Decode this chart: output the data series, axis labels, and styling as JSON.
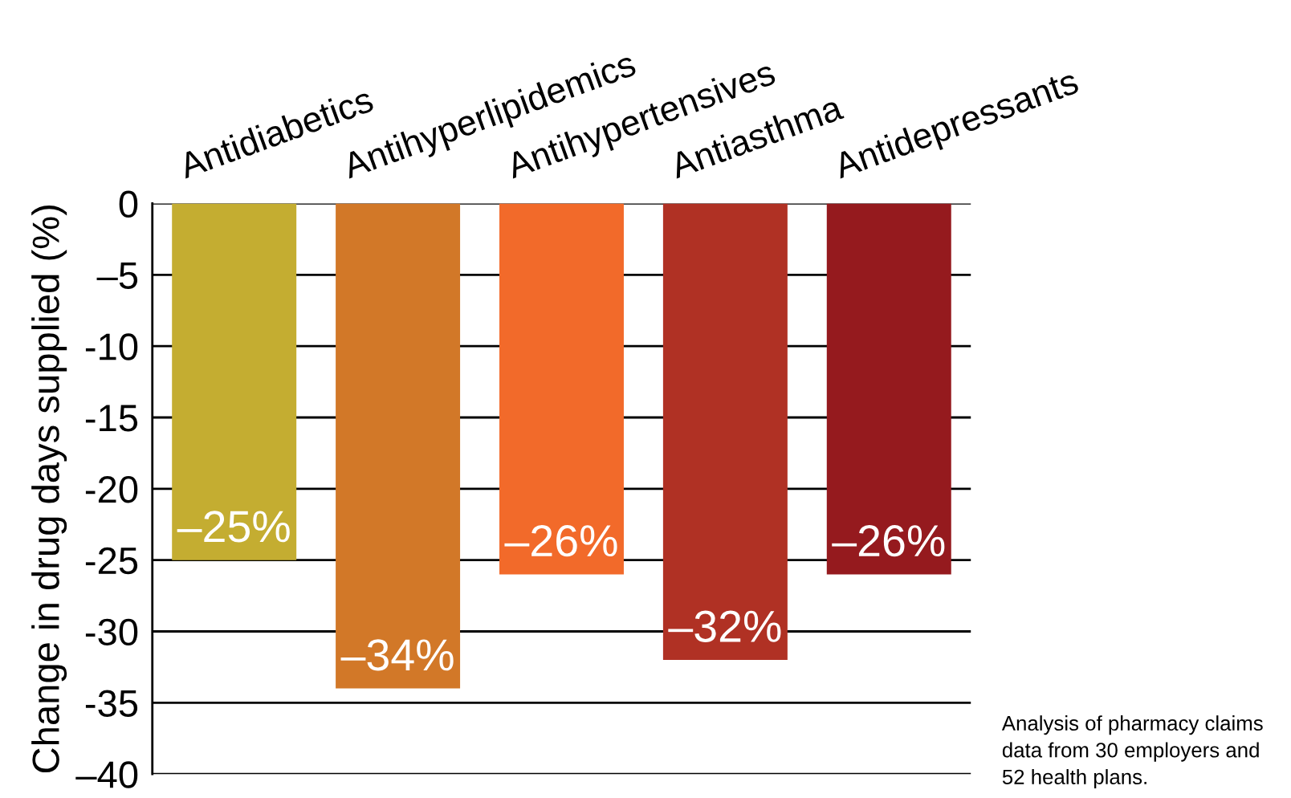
{
  "chart_data": {
    "type": "bar",
    "ylabel": "Change in drug days supplied (%)",
    "categories": [
      "Antidiabetics",
      "Antihyperlipidemics",
      "Antihypertensives",
      "Antiasthma",
      "Antidepressants"
    ],
    "values": [
      -25,
      -34,
      -26,
      -32,
      -26
    ],
    "value_labels": [
      "–25%",
      "–34%",
      "–26%",
      "–32%",
      "–26%"
    ],
    "colors": [
      "#c4ad31",
      "#d27828",
      "#f26a2a",
      "#b03124",
      "#951a1e"
    ],
    "ylim": [
      -40,
      0
    ],
    "yticks": [
      0,
      {
        "value": -5,
        "label": "–5"
      },
      {
        "value": -10,
        "label": "-10"
      },
      {
        "value": -15,
        "label": "-15"
      },
      {
        "value": -20,
        "label": "-20"
      },
      {
        "value": -25,
        "label": "-25"
      },
      {
        "value": -30,
        "label": "-30"
      },
      {
        "value": -35,
        "label": "-35"
      },
      {
        "value": -40,
        "label": "–40"
      }
    ],
    "grid": "y",
    "annotations": [
      "Analysis of pharmacy claims\ndata from 30 employers and\n52 health plans."
    ]
  }
}
